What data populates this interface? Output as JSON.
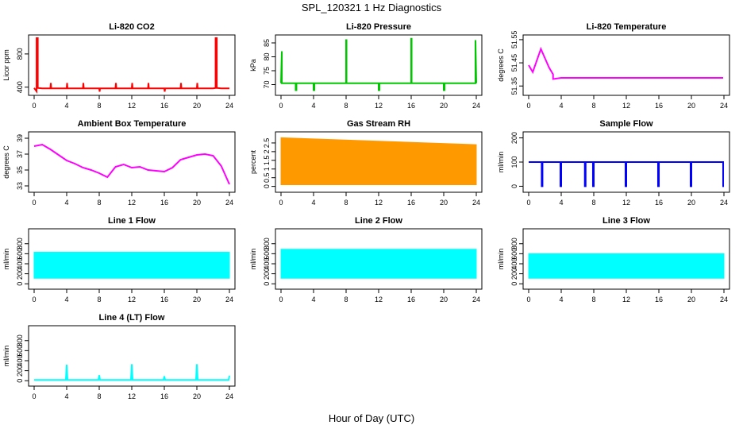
{
  "figure": {
    "title": "SPL_120321  1 Hz Diagnostics",
    "xlabel": "Hour of Day (UTC)"
  },
  "chart_data": [
    {
      "type": "line",
      "title": "Li-820 CO2",
      "ylabel": "Licor ppm",
      "color": "#ff0000",
      "xlim": [
        0,
        24
      ],
      "ylim": [
        330,
        1000
      ],
      "xticks": [
        0,
        4,
        8,
        12,
        16,
        20,
        24
      ],
      "yticks": [
        400,
        800
      ],
      "render": "line",
      "x": [
        0,
        0.3,
        0.3,
        0.45,
        0.45,
        1,
        2,
        2.05,
        2.1,
        3,
        4,
        4.05,
        4.1,
        5,
        6,
        6.05,
        6.1,
        7,
        8,
        8.05,
        8.1,
        9,
        10,
        10.05,
        10.1,
        11,
        12,
        12.05,
        12.1,
        13,
        14,
        14.05,
        14.1,
        15,
        16,
        16.05,
        16.1,
        17,
        18,
        18.05,
        18.1,
        19,
        20,
        20.05,
        20.1,
        21,
        22,
        22.3,
        22.3,
        22.45,
        22.45,
        23,
        24
      ],
      "y": [
        390,
        350,
        990,
        990,
        390,
        385,
        385,
        450,
        385,
        385,
        385,
        450,
        385,
        385,
        385,
        450,
        385,
        385,
        385,
        345,
        385,
        385,
        385,
        450,
        385,
        385,
        385,
        450,
        385,
        385,
        385,
        450,
        385,
        385,
        385,
        345,
        385,
        385,
        385,
        450,
        385,
        385,
        385,
        450,
        385,
        385,
        385,
        390,
        990,
        990,
        390,
        385,
        385
      ]
    },
    {
      "type": "line",
      "title": "Li-820 Pressure",
      "ylabel": "kPa",
      "color": "#00c800",
      "xlim": [
        0,
        24
      ],
      "ylim": [
        67,
        87
      ],
      "xticks": [
        0,
        4,
        8,
        12,
        16,
        20,
        24
      ],
      "yticks": [
        70,
        75,
        80,
        85
      ],
      "render": "line",
      "x": [
        0,
        0.1,
        0.1,
        0.2,
        0.2,
        1,
        1.8,
        1.8,
        1.9,
        1.9,
        3,
        4,
        4,
        4.1,
        4.1,
        6,
        8,
        8,
        8.05,
        8.05,
        10,
        12,
        12,
        12.1,
        12.1,
        14,
        16,
        16,
        16.05,
        16.05,
        18,
        20,
        20,
        20.1,
        20.1,
        22,
        23.9,
        23.9,
        24
      ],
      "y": [
        70.5,
        82,
        70.5,
        70.5,
        70.5,
        70.5,
        70.5,
        68,
        68,
        70.5,
        70.5,
        70.5,
        68,
        68,
        70.5,
        70.5,
        70.5,
        86,
        86,
        70.5,
        70.5,
        70.5,
        68,
        68,
        70.5,
        70.5,
        70.5,
        86.5,
        86.5,
        70.5,
        70.5,
        70.5,
        68,
        68,
        70.5,
        70.5,
        70.5,
        86,
        70.5
      ]
    },
    {
      "type": "line",
      "title": "Li-820 Temperature",
      "ylabel": "degrees C",
      "color": "#ff00ff",
      "xlim": [
        0,
        24
      ],
      "ylim": [
        51.32,
        51.56
      ],
      "xticks": [
        0,
        4,
        8,
        12,
        16,
        20,
        24
      ],
      "yticks": [
        51.35,
        51.45,
        51.55
      ],
      "render": "line",
      "x": [
        0,
        0.5,
        1,
        1.5,
        2,
        2.5,
        3,
        3,
        4,
        8,
        12,
        16,
        20,
        23.9
      ],
      "y": [
        51.44,
        51.41,
        51.46,
        51.51,
        51.47,
        51.43,
        51.4,
        51.38,
        51.385,
        51.385,
        51.385,
        51.385,
        51.385,
        51.385
      ]
    },
    {
      "type": "line",
      "title": "Ambient Box Temperature",
      "ylabel": "degrees C",
      "color": "#ff00ff",
      "xlim": [
        0,
        24
      ],
      "ylim": [
        32.5,
        39.5
      ],
      "xticks": [
        0,
        4,
        8,
        12,
        16,
        20,
        24
      ],
      "yticks": [
        33,
        35,
        37,
        39
      ],
      "render": "line",
      "x": [
        0,
        1,
        2,
        3,
        4,
        5,
        6,
        7,
        8,
        9,
        10,
        11,
        12,
        13,
        14,
        15,
        16,
        17,
        18,
        19,
        20,
        21,
        22,
        23,
        24
      ],
      "y": [
        38.0,
        38.2,
        37.6,
        36.9,
        36.2,
        35.8,
        35.3,
        35.0,
        34.6,
        34.1,
        35.4,
        35.7,
        35.3,
        35.4,
        35.0,
        34.9,
        34.8,
        35.3,
        36.3,
        36.6,
        36.9,
        37.0,
        36.8,
        35.5,
        33.2
      ]
    },
    {
      "type": "area",
      "title": "Gas Stream RH",
      "ylabel": "percent",
      "color": "#ff9900",
      "xlim": [
        0,
        24
      ],
      "ylim": [
        -0.2,
        3.0
      ],
      "xticks": [
        0,
        4,
        8,
        12,
        16,
        20,
        24
      ],
      "yticks": [
        0.0,
        0.5,
        1.0,
        1.5,
        2.0,
        2.5
      ],
      "render": "band",
      "x": [
        0,
        24
      ],
      "y_min": [
        0.1,
        0.1
      ],
      "y_max": [
        2.8,
        2.4
      ]
    },
    {
      "type": "line",
      "title": "Sample Flow",
      "ylabel": "ml/min",
      "color": "#0000ff",
      "xlim": [
        0,
        24
      ],
      "ylim": [
        -15,
        215
      ],
      "xticks": [
        0,
        4,
        8,
        12,
        16,
        20,
        24
      ],
      "yticks": [
        0,
        100,
        200
      ],
      "render": "line",
      "x": [
        0,
        1.6,
        1.6,
        1.7,
        1.7,
        3.9,
        3.9,
        4.0,
        4.0,
        6.9,
        6.9,
        7.0,
        7.0,
        7.9,
        7.9,
        8.0,
        8.0,
        11.9,
        11.9,
        12.0,
        12.0,
        15.9,
        15.9,
        16.0,
        16.0,
        19.9,
        19.9,
        20.0,
        20.0,
        23.9,
        23.9,
        24
      ],
      "y": [
        100,
        100,
        0,
        0,
        100,
        100,
        0,
        0,
        100,
        100,
        0,
        0,
        100,
        100,
        0,
        0,
        100,
        100,
        0,
        0,
        100,
        100,
        0,
        0,
        100,
        100,
        0,
        0,
        100,
        100,
        0,
        0
      ]
    },
    {
      "type": "area",
      "title": "Line 1 Flow",
      "ylabel": "ml/min",
      "color": "#00ffff",
      "xlim": [
        0,
        24
      ],
      "ylim": [
        -60,
        1050
      ],
      "xticks": [
        0,
        4,
        8,
        12,
        16,
        20,
        24
      ],
      "yticks": [
        0,
        200,
        400,
        600,
        800
      ],
      "render": "band",
      "x": [
        0,
        24
      ],
      "y_min": [
        110,
        110
      ],
      "y_max": [
        630,
        630
      ]
    },
    {
      "type": "area",
      "title": "Line 2 Flow",
      "ylabel": "ml/min",
      "color": "#00ffff",
      "xlim": [
        0,
        24
      ],
      "ylim": [
        -60,
        1050
      ],
      "xticks": [
        0,
        4,
        8,
        12,
        16,
        20,
        24
      ],
      "yticks": [
        0,
        200,
        400,
        600,
        800
      ],
      "render": "band",
      "x": [
        0,
        24
      ],
      "y_min": [
        110,
        110
      ],
      "y_max": [
        690,
        690
      ]
    },
    {
      "type": "area",
      "title": "Line 3 Flow",
      "ylabel": "ml/min",
      "color": "#00ffff",
      "xlim": [
        0,
        24
      ],
      "ylim": [
        -60,
        1050
      ],
      "xticks": [
        0,
        4,
        8,
        12,
        16,
        20,
        24
      ],
      "yticks": [
        0,
        200,
        400,
        600,
        800
      ],
      "render": "band",
      "x": [
        0,
        24
      ],
      "y_min": [
        110,
        110
      ],
      "y_max": [
        600,
        600
      ]
    },
    {
      "type": "line",
      "title": "Line 4 (LT) Flow",
      "ylabel": "ml/min",
      "color": "#00ffff",
      "xlim": [
        0,
        24
      ],
      "ylim": [
        -60,
        1050
      ],
      "xticks": [
        0,
        4,
        8,
        12,
        16,
        20,
        24
      ],
      "yticks": [
        0,
        200,
        400,
        600,
        800
      ],
      "render": "line",
      "x": [
        0,
        3.9,
        4.0,
        4.1,
        7.9,
        8.0,
        8.1,
        11.9,
        12.0,
        12.1,
        15.9,
        16.0,
        16.1,
        19.9,
        20.0,
        20.1,
        23.9,
        24.0
      ],
      "y": [
        15,
        15,
        320,
        15,
        15,
        110,
        15,
        15,
        330,
        15,
        15,
        90,
        15,
        15,
        330,
        15,
        15,
        100
      ]
    }
  ]
}
